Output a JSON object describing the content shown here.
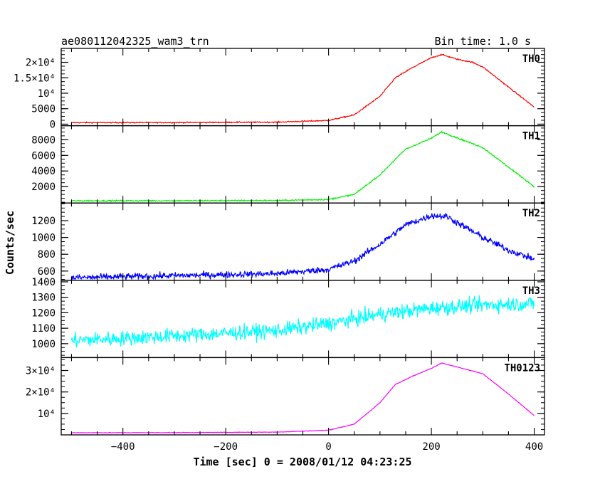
{
  "chart_data": {
    "type": "line",
    "title": "ae080112042325_wam3_trn",
    "subtitle": "Bin time: 1.0 s",
    "xlabel": "Time [sec] 0 = 2008/01/12 04:23:25",
    "ylabel": "Counts/sec",
    "xlim": [
      -520,
      420
    ],
    "x_ticks": [
      -400,
      -200,
      0,
      200,
      400
    ],
    "x_tick_labels": [
      "−400",
      "−200",
      "0",
      "200",
      "400"
    ],
    "x_step": 1,
    "x_range": [
      -500,
      400
    ],
    "grid": false,
    "legend": "none",
    "panels": [
      {
        "name": "TH0",
        "color": "#ff0000",
        "ylim": [
          -500,
          24500
        ],
        "y_ticks": [
          0,
          5000,
          10000,
          15000,
          20000
        ],
        "y_tick_labels": [
          "0",
          "5000",
          "10⁴",
          "1.5×10⁴",
          "2×10⁴"
        ],
        "noise": 180,
        "profile": [
          [
            -500,
            500
          ],
          [
            -300,
            520
          ],
          [
            -100,
            650
          ],
          [
            0,
            1200
          ],
          [
            50,
            3000
          ],
          [
            100,
            9000
          ],
          [
            130,
            15000
          ],
          [
            160,
            18000
          ],
          [
            200,
            21500
          ],
          [
            220,
            22500
          ],
          [
            250,
            21000
          ],
          [
            280,
            20000
          ],
          [
            300,
            18500
          ],
          [
            350,
            12000
          ],
          [
            400,
            5500
          ]
        ]
      },
      {
        "name": "TH1",
        "color": "#00ee00",
        "ylim": [
          -100,
          9800
        ],
        "y_ticks": [
          2000,
          4000,
          6000,
          8000
        ],
        "y_tick_labels": [
          "2000",
          "4000",
          "6000",
          "8000"
        ],
        "noise": 80,
        "profile": [
          [
            -500,
            180
          ],
          [
            -300,
            190
          ],
          [
            -100,
            220
          ],
          [
            0,
            350
          ],
          [
            50,
            1000
          ],
          [
            100,
            3500
          ],
          [
            130,
            5500
          ],
          [
            150,
            6800
          ],
          [
            200,
            8200
          ],
          [
            220,
            9000
          ],
          [
            260,
            8000
          ],
          [
            300,
            7000
          ],
          [
            350,
            4500
          ],
          [
            400,
            2000
          ]
        ]
      },
      {
        "name": "TH2",
        "color": "#0000ff",
        "ylim": [
          490,
          1410
        ],
        "y_ticks": [
          600,
          800,
          1000,
          1200
        ],
        "y_tick_labels": [
          "600",
          "800",
          "1000",
          "1200"
        ],
        "noise": 38,
        "profile": [
          [
            -500,
            520
          ],
          [
            -300,
            545
          ],
          [
            -100,
            570
          ],
          [
            0,
            620
          ],
          [
            50,
            720
          ],
          [
            100,
            920
          ],
          [
            150,
            1150
          ],
          [
            200,
            1260
          ],
          [
            230,
            1250
          ],
          [
            300,
            1000
          ],
          [
            350,
            850
          ],
          [
            400,
            740
          ]
        ]
      },
      {
        "name": "TH3",
        "color": "#00ffff",
        "ylim": [
          910,
          1410
        ],
        "y_ticks": [
          1000,
          1100,
          1200,
          1300,
          1400
        ],
        "y_tick_labels": [
          "1000",
          "1100",
          "1200",
          "1300",
          "1400"
        ],
        "noise": 48,
        "profile": [
          [
            -500,
            1020
          ],
          [
            -300,
            1050
          ],
          [
            -100,
            1085
          ],
          [
            0,
            1130
          ],
          [
            100,
            1190
          ],
          [
            200,
            1230
          ],
          [
            300,
            1250
          ],
          [
            400,
            1260
          ]
        ]
      },
      {
        "name": "TH0123",
        "color": "#ff00ff",
        "ylim": [
          0,
          36000
        ],
        "y_ticks": [
          10000,
          20000,
          30000
        ],
        "y_tick_labels": [
          "10⁴",
          "2×10⁴",
          "3×10⁴"
        ],
        "noise": 120,
        "profile": [
          [
            -500,
            1000
          ],
          [
            -300,
            1050
          ],
          [
            -100,
            1300
          ],
          [
            0,
            2200
          ],
          [
            50,
            5000
          ],
          [
            100,
            15000
          ],
          [
            130,
            23500
          ],
          [
            160,
            27000
          ],
          [
            200,
            31000
          ],
          [
            220,
            33500
          ],
          [
            260,
            31000
          ],
          [
            300,
            28500
          ],
          [
            350,
            19000
          ],
          [
            400,
            9000
          ]
        ]
      }
    ]
  }
}
